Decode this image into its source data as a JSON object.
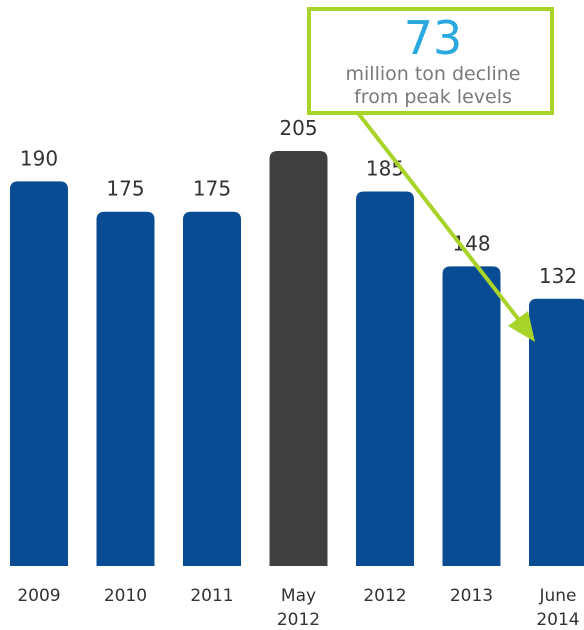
{
  "chart_data": {
    "type": "bar",
    "categories": [
      [
        "2009"
      ],
      [
        "2010"
      ],
      [
        "2011"
      ],
      [
        "May",
        "2012"
      ],
      [
        "2012"
      ],
      [
        "2013"
      ],
      [
        "June",
        "2014"
      ]
    ],
    "values": [
      190,
      175,
      175,
      205,
      185,
      148,
      132
    ],
    "highlight_index": 3,
    "title": "",
    "xlabel": "",
    "ylabel": "",
    "grid": false,
    "legend": "none"
  },
  "callout": {
    "value": "73",
    "line1": "million ton decline",
    "line2": "from peak levels"
  },
  "colors": {
    "bar": "#0a4c93",
    "highlight_bar": "#404040",
    "callout_border": "#a8d42a",
    "callout_value": "#2aa8e0",
    "arrow": "#a8d42a"
  }
}
